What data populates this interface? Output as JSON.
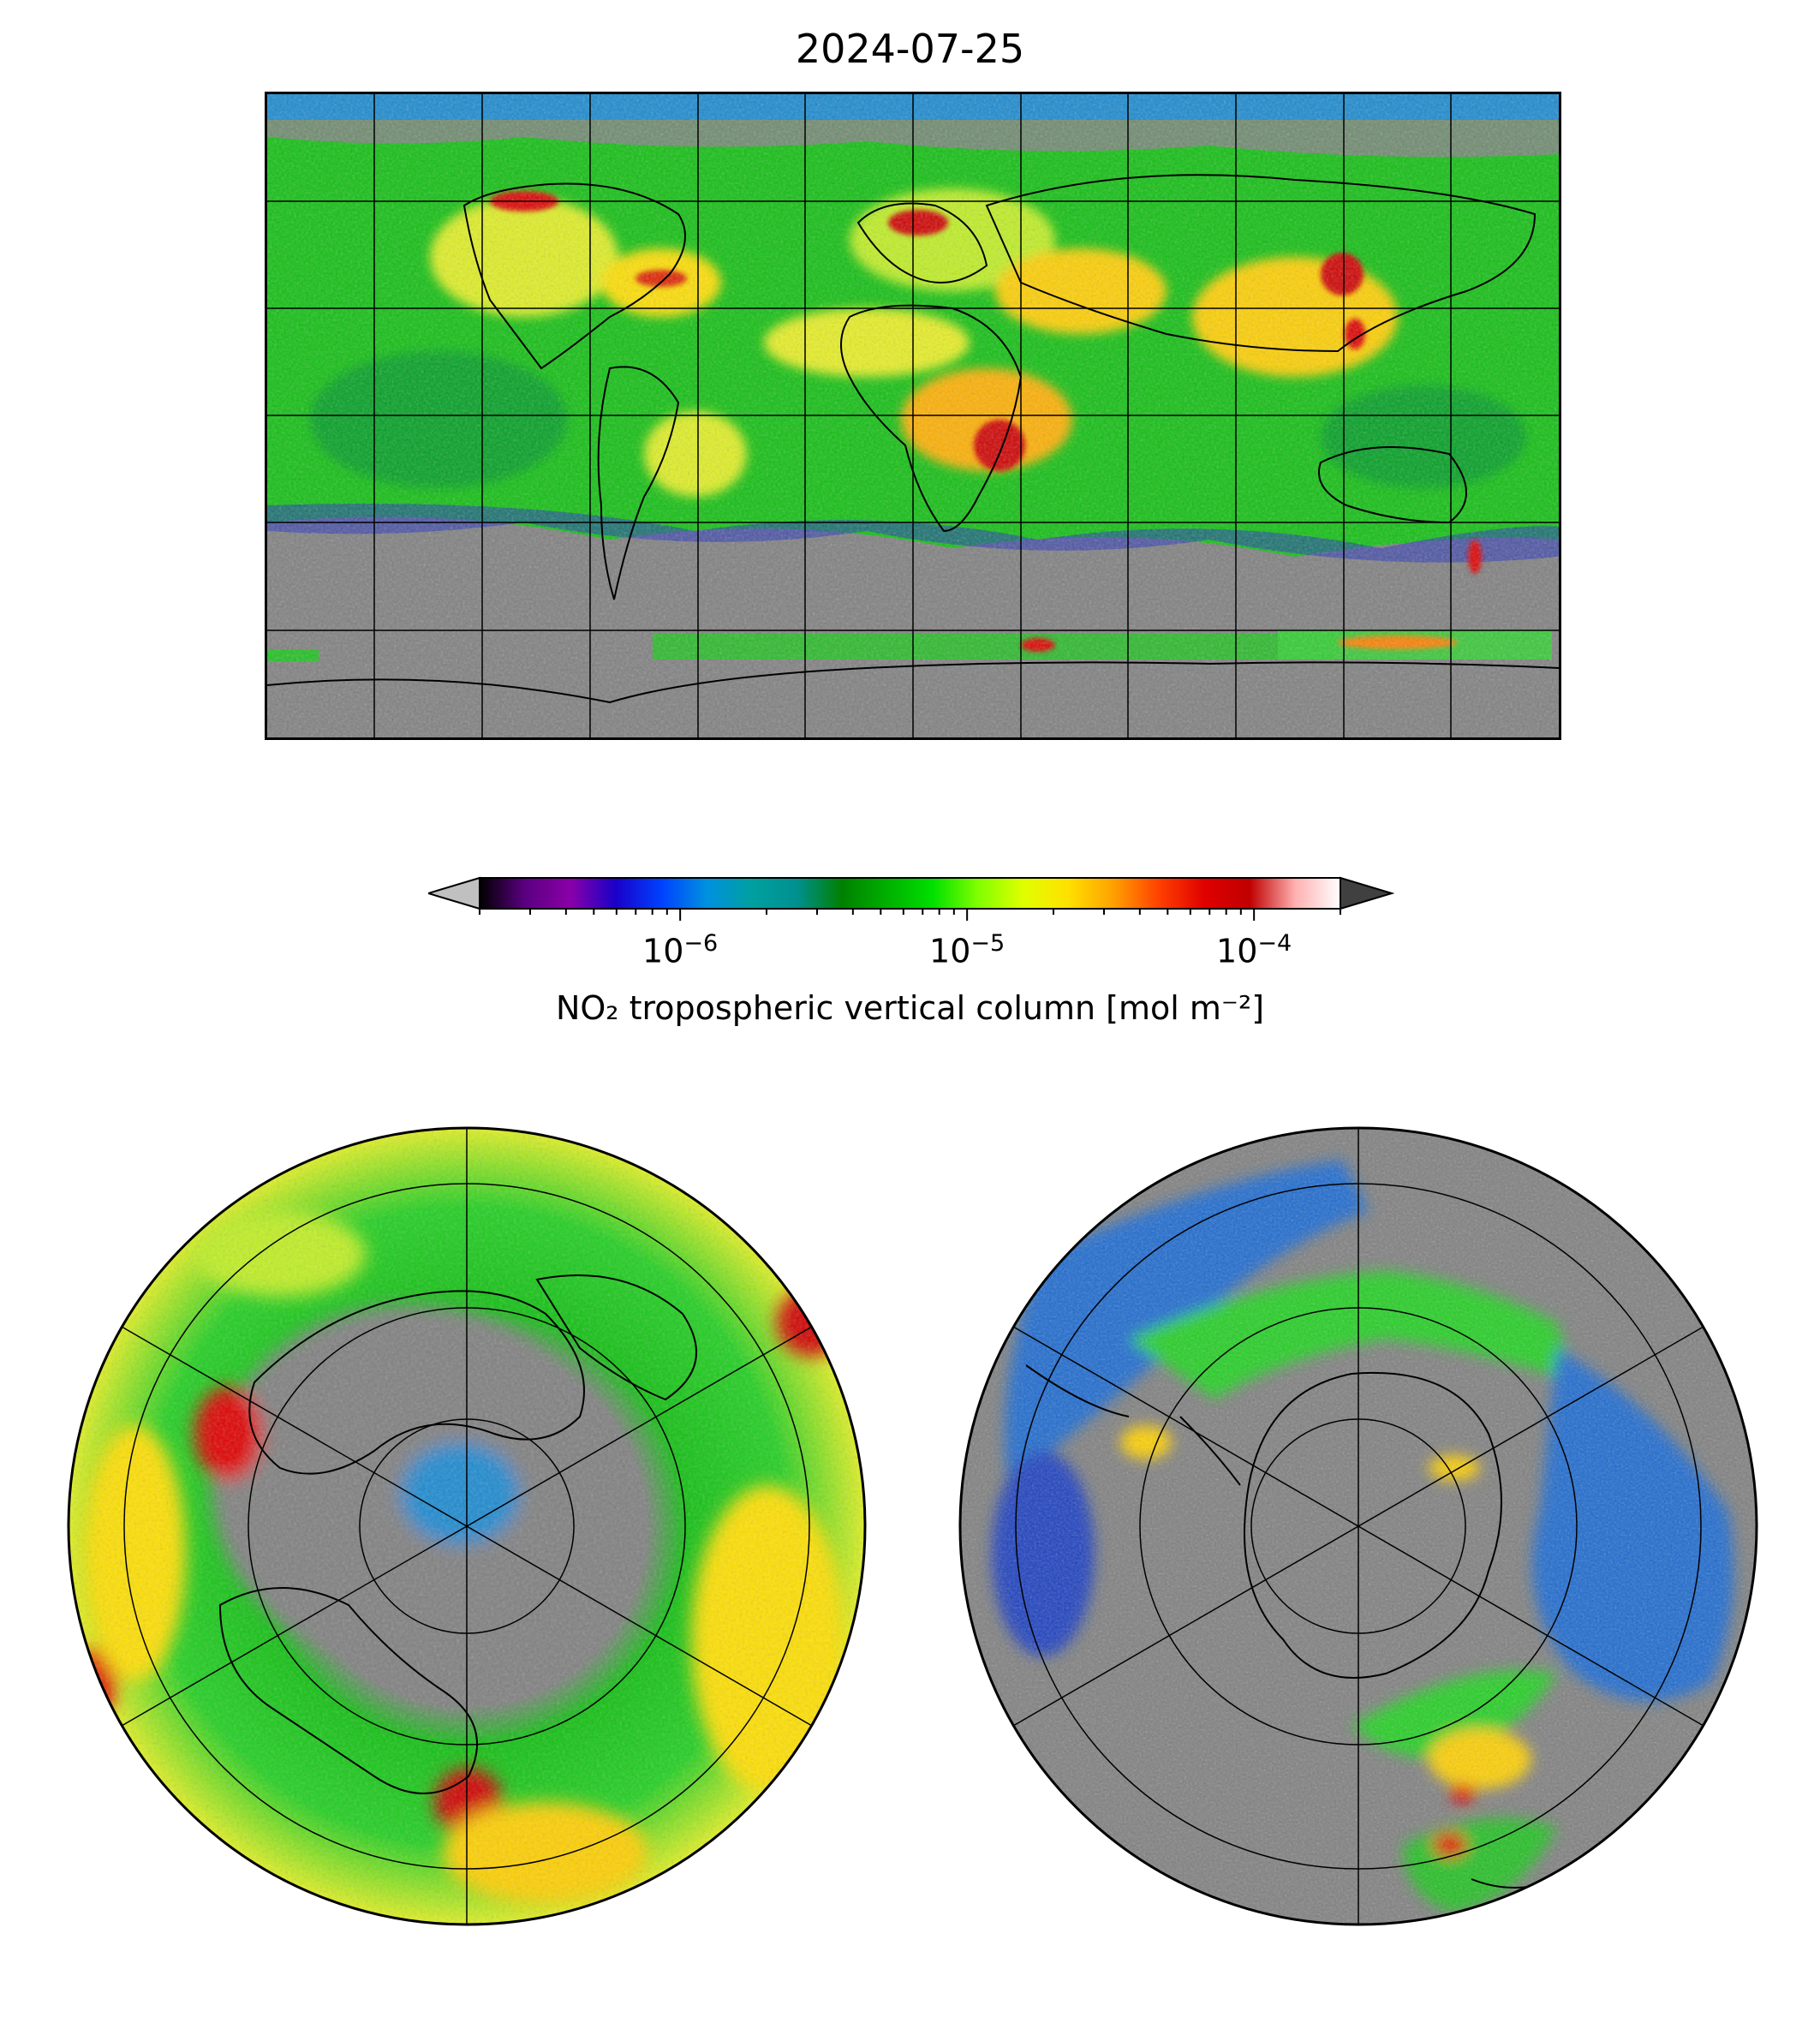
{
  "figure": {
    "title": "2024-07-25"
  },
  "colorbar": {
    "label": "NO₂ tropospheric vertical column [mol m⁻²]",
    "scale": "log",
    "range": [
      2e-07,
      0.0002
    ],
    "extend": "both",
    "ticks": [
      {
        "value": 1e-06,
        "base": "10",
        "exp": "−6"
      },
      {
        "value": 1e-05,
        "base": "10",
        "exp": "−5"
      },
      {
        "value": 0.0001,
        "base": "10",
        "exp": "−4"
      }
    ],
    "colors": [
      "#000000",
      "#5a0080",
      "#8a00a8",
      "#1a00c8",
      "#0040ff",
      "#0090e0",
      "#00a0a0",
      "#009090",
      "#008000",
      "#00b000",
      "#00e000",
      "#80ff00",
      "#e0ff00",
      "#ffe000",
      "#ffa000",
      "#ff4000",
      "#e00000",
      "#c00000",
      "#ffb0b0",
      "#ffffff"
    ],
    "under_color": "#c0c0c0",
    "over_color": "#404040"
  },
  "maps": [
    {
      "name": "global",
      "projection": "PlateCarree",
      "no_data_color": "#808080"
    },
    {
      "name": "north-polar",
      "projection": "NorthPolarStereo",
      "no_data_color": "#808080"
    },
    {
      "name": "south-polar",
      "projection": "SouthPolarStereo",
      "no_data_color": "#808080"
    }
  ]
}
